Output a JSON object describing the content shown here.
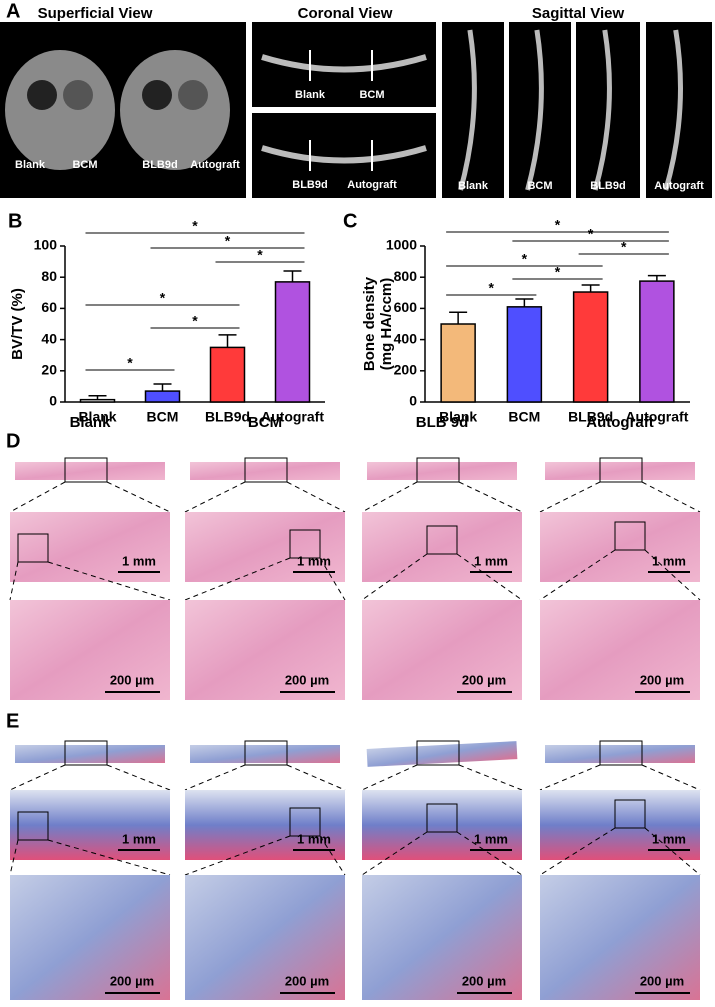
{
  "panels": {
    "A": {
      "letter": "A",
      "headings": [
        "Superficial View",
        "Coronal View",
        "Sagittal View"
      ],
      "labels": [
        "Blank",
        "BCM",
        "BLB9d",
        "Autograft"
      ]
    },
    "D": {
      "letter": "D",
      "columns": [
        "Blank",
        "BCM",
        "BLB 9d",
        "Autograft"
      ]
    },
    "E": {
      "letter": "E"
    },
    "scale_bars": [
      "1 mm",
      "200 µm"
    ]
  },
  "chart_data": [
    {
      "type": "bar",
      "letter": "B",
      "y_label": [
        "BV/TV (%)"
      ],
      "categories": [
        "Blank",
        "BCM",
        "BLB9d",
        "Autograft"
      ],
      "values": [
        1.5,
        7,
        35,
        77
      ],
      "errors": [
        2.5,
        4.5,
        8,
        7
      ],
      "colors": [
        "#ffffff",
        "#4f4fff",
        "#ff3a3a",
        "#b052e0"
      ],
      "ylim": [
        0,
        100
      ],
      "yticks": [
        0,
        20,
        40,
        60,
        80,
        100
      ],
      "comparisons": [
        {
          "from": "Blank",
          "to": "Autograft",
          "label": "*"
        },
        {
          "from": "BCM",
          "to": "Autograft",
          "label": "*"
        },
        {
          "from": "BLB9d",
          "to": "Autograft",
          "label": "*"
        },
        {
          "from": "Blank",
          "to": "BLB9d",
          "label": "*"
        },
        {
          "from": "BCM",
          "to": "BLB9d",
          "label": "*"
        },
        {
          "from": "Blank",
          "to": "BCM",
          "label": "*"
        }
      ]
    },
    {
      "type": "bar",
      "letter": "C",
      "y_label": [
        "Bone density",
        "(mg HA/ccm)"
      ],
      "categories": [
        "Blank",
        "BCM",
        "BLB9d",
        "Autograft"
      ],
      "values": [
        500,
        610,
        705,
        775
      ],
      "errors": [
        75,
        50,
        45,
        35
      ],
      "colors": [
        "#f3b97a",
        "#4f4fff",
        "#ff3a3a",
        "#b052e0"
      ],
      "ylim": [
        0,
        1000
      ],
      "yticks": [
        0,
        200,
        400,
        600,
        800,
        1000
      ],
      "comparisons": [
        {
          "from": "Blank",
          "to": "Autograft",
          "label": "*"
        },
        {
          "from": "BCM",
          "to": "Autograft",
          "label": "*"
        },
        {
          "from": "BLB9d",
          "to": "Autograft",
          "label": "*"
        },
        {
          "from": "Blank",
          "to": "BLB9d",
          "label": "*"
        },
        {
          "from": "BCM",
          "to": "BLB9d",
          "label": "*"
        },
        {
          "from": "Blank",
          "to": "BCM",
          "label": "*"
        }
      ]
    }
  ]
}
